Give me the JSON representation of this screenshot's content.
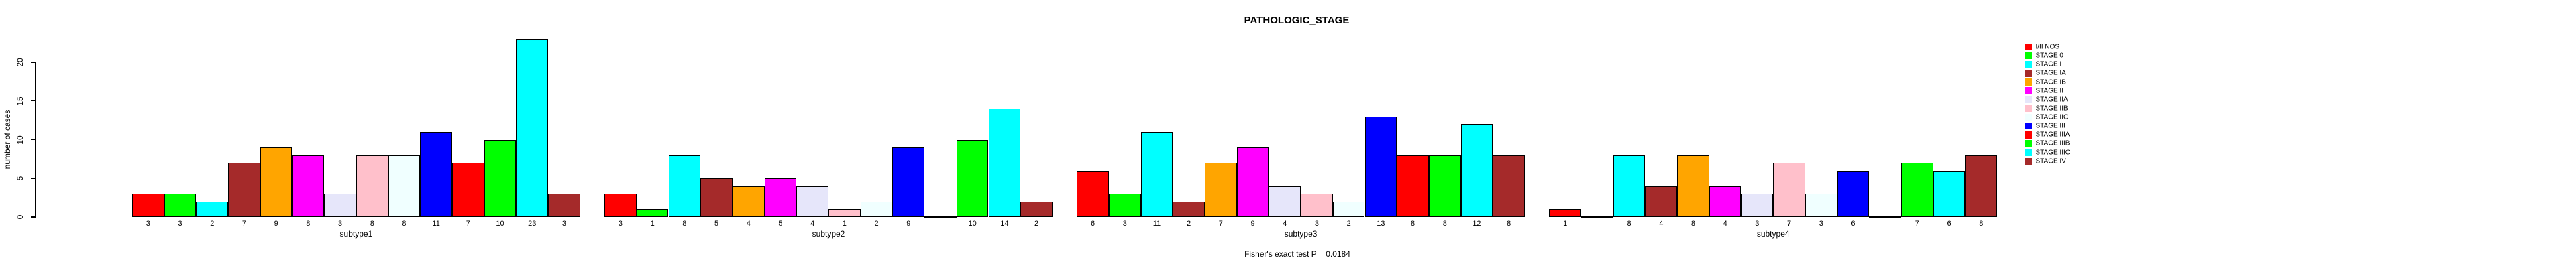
{
  "title": "PATHOLOGIC_STAGE",
  "footer": "Fisher's exact test P = 0.0184",
  "chart_data": {
    "type": "bar",
    "title": "PATHOLOGIC_STAGE",
    "xlabel": "",
    "ylabel": "number of cases",
    "yticks": [
      0,
      5,
      10,
      15,
      20
    ],
    "ylim": [
      0,
      23
    ],
    "grid": false,
    "legend_position": "right",
    "bar_border_color": "#000000",
    "categories": [
      "I/II NOS",
      "STAGE 0",
      "STAGE I",
      "STAGE IA",
      "STAGE IB",
      "STAGE II",
      "STAGE IIA",
      "STAGE IIB",
      "STAGE IIC",
      "STAGE III",
      "STAGE IIIA",
      "STAGE IIIB",
      "STAGE IIIC",
      "STAGE IV"
    ],
    "colors": [
      "#FF0000",
      "#00FF00",
      "#00FFFF",
      "#A52A2A",
      "#FFA500",
      "#FF00FF",
      "#E6E6FA",
      "#FFC0CB",
      "#F0FFFF",
      "#0000FF",
      "#FF0000",
      "#00FF00",
      "#00FFFF",
      "#A52A2A"
    ],
    "groups": [
      {
        "label": "subtype1",
        "values": [
          3,
          3,
          2,
          7,
          9,
          8,
          3,
          8,
          8,
          11,
          7,
          10,
          23,
          3
        ]
      },
      {
        "label": "subtype2",
        "values": [
          3,
          1,
          8,
          5,
          4,
          5,
          4,
          1,
          2,
          9,
          0,
          10,
          14,
          2
        ]
      },
      {
        "label": "subtype3",
        "values": [
          6,
          3,
          11,
          2,
          7,
          9,
          4,
          3,
          2,
          13,
          8,
          8,
          12,
          8
        ]
      },
      {
        "label": "subtype4",
        "values": [
          1,
          0,
          8,
          4,
          8,
          4,
          3,
          7,
          3,
          6,
          0,
          7,
          6,
          8
        ]
      }
    ]
  }
}
